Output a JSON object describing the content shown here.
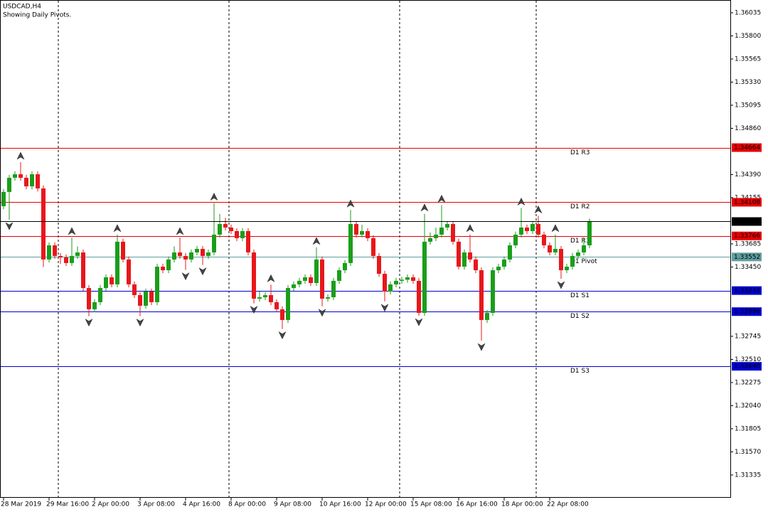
{
  "chart_data": {
    "type": "candlestick",
    "title": "USDCAD,H4",
    "subtitle": "Showing Daily Pivots.",
    "categories": [
      "28 Mar 2019",
      null,
      null,
      null,
      null,
      null,
      null,
      null,
      "29 Mar 16:00",
      null,
      null,
      null,
      null,
      null,
      null,
      null,
      "2 Apr 00:00",
      null,
      null,
      null,
      null,
      null,
      null,
      null,
      "3 Apr 08:00",
      null,
      null,
      null,
      null,
      null,
      null,
      null,
      "4 Apr 16:00",
      null,
      null,
      null,
      null,
      null,
      null,
      null,
      "8 Apr 00:00",
      null,
      null,
      null,
      null,
      null,
      null,
      null,
      "9 Apr 08:00",
      null,
      null,
      null,
      null,
      null,
      null,
      null,
      "10 Apr 16:00",
      null,
      null,
      null,
      null,
      null,
      null,
      null,
      "12 Apr 00:00",
      null,
      null,
      null,
      null,
      null,
      null,
      null,
      "15 Apr 08:00",
      null,
      null,
      null,
      null,
      null,
      null,
      null,
      "16 Apr 16:00",
      null,
      null,
      null,
      null,
      null,
      null,
      null,
      "18 Apr 00:00",
      null,
      null,
      null,
      null,
      null,
      null,
      null,
      "22 Apr 08:00",
      null,
      null,
      null,
      null,
      null,
      null,
      null
    ],
    "open": [
      1.34068,
      1.34213,
      1.34357,
      1.34393,
      1.34357,
      1.3427,
      1.34393,
      1.34249,
      1.33526,
      1.3367,
      1.33562,
      1.33547,
      1.3349,
      1.33562,
      1.33598,
      1.33236,
      1.3302,
      1.33092,
      1.33236,
      1.33345,
      1.33273,
      1.33707,
      1.33526,
      1.33273,
      1.33164,
      1.33056,
      1.332,
      1.33092,
      1.33453,
      1.33417,
      1.33526,
      1.33598,
      1.33562,
      1.33526,
      1.33598,
      1.33634,
      1.33562,
      1.33598,
      1.33779,
      1.33887,
      1.33851,
      1.33815,
      1.33743,
      1.33815,
      1.33598,
      1.33128,
      1.33142,
      1.33164,
      1.33092,
      1.3302,
      1.32911,
      1.33236,
      1.33273,
      1.33309,
      1.33345,
      1.33287,
      1.33526,
      1.33128,
      1.33142,
      1.33309,
      1.33417,
      1.3349,
      1.33887,
      1.33779,
      1.33815,
      1.33743,
      1.33562,
      1.33381,
      1.332,
      1.33273,
      1.33309,
      1.3332,
      1.33345,
      1.33309,
      1.32983,
      1.33707,
      1.33743,
      1.33779,
      1.33851,
      1.33887,
      1.33707,
      1.33453,
      1.33598,
      1.33526,
      1.33417,
      1.32911,
      1.32983,
      1.33417,
      1.33453,
      1.33526,
      1.3367,
      1.33779,
      1.33851,
      1.33815,
      1.33887,
      1.33779,
      1.3367,
      1.33598,
      1.33634,
      1.33417,
      1.33453,
      1.33562,
      1.33598,
      1.3367
    ],
    "high": [
      1.34243,
      1.34387,
      1.34423,
      1.34516,
      1.34387,
      1.34423,
      1.34423,
      1.34279,
      1.337,
      1.337,
      1.33592,
      1.33577,
      1.3375,
      1.3366,
      1.33628,
      1.33266,
      1.33122,
      1.33266,
      1.33375,
      1.33375,
      1.3378,
      1.33737,
      1.33556,
      1.33303,
      1.33194,
      1.3323,
      1.3323,
      1.33483,
      1.33483,
      1.33556,
      1.3366,
      1.3375,
      1.33592,
      1.33628,
      1.33664,
      1.33664,
      1.33628,
      1.341,
      1.3399,
      1.3395,
      1.33881,
      1.33845,
      1.33845,
      1.33845,
      1.33628,
      1.332,
      1.33194,
      1.3327,
      1.33122,
      1.3305,
      1.33266,
      1.33303,
      1.33339,
      1.33375,
      1.33375,
      1.3365,
      1.33556,
      1.33172,
      1.33339,
      1.33447,
      1.3352,
      1.3403,
      1.33917,
      1.3388,
      1.33845,
      1.33773,
      1.33592,
      1.33411,
      1.33303,
      1.33339,
      1.3335,
      1.33375,
      1.33375,
      1.33339,
      1.3399,
      1.338,
      1.3385,
      1.3408,
      1.33917,
      1.33917,
      1.33737,
      1.33628,
      1.3378,
      1.33556,
      1.33447,
      1.33013,
      1.33447,
      1.33483,
      1.33556,
      1.337,
      1.33809,
      1.3405,
      1.33881,
      1.33917,
      1.3397,
      1.33809,
      1.337,
      1.3378,
      1.33664,
      1.33483,
      1.33592,
      1.33628,
      1.3375,
      1.33943
    ],
    "low": [
      1.34038,
      1.3393,
      1.34327,
      1.34327,
      1.3424,
      1.3424,
      1.34219,
      1.3345,
      1.33496,
      1.33532,
      1.3348,
      1.3346,
      1.3346,
      1.33532,
      1.33206,
      1.3295,
      1.3299,
      1.33062,
      1.33206,
      1.33243,
      1.33243,
      1.33496,
      1.33243,
      1.33134,
      1.3295,
      1.33026,
      1.33062,
      1.33062,
      1.33387,
      1.33387,
      1.33496,
      1.33532,
      1.3342,
      1.33496,
      1.33568,
      1.3347,
      1.33532,
      1.33568,
      1.33749,
      1.33821,
      1.33785,
      1.33713,
      1.33713,
      1.33568,
      1.3308,
      1.33098,
      1.33112,
      1.33062,
      1.3299,
      1.3282,
      1.32881,
      1.33206,
      1.33243,
      1.33279,
      1.33257,
      1.33257,
      1.3305,
      1.33098,
      1.33112,
      1.33279,
      1.33387,
      1.3346,
      1.33749,
      1.33749,
      1.33713,
      1.33532,
      1.33351,
      1.331,
      1.3317,
      1.33243,
      1.33279,
      1.3329,
      1.33279,
      1.32953,
      1.32953,
      1.33677,
      1.33713,
      1.33749,
      1.33821,
      1.33677,
      1.33423,
      1.33423,
      1.33496,
      1.33387,
      1.327,
      1.32881,
      1.32953,
      1.33387,
      1.33423,
      1.33496,
      1.3364,
      1.33749,
      1.33785,
      1.33785,
      1.33749,
      1.3364,
      1.33568,
      1.33568,
      1.3333,
      1.33387,
      1.33423,
      1.33532,
      1.33568,
      1.3364
    ],
    "close": [
      1.34213,
      1.34357,
      1.34393,
      1.34357,
      1.3427,
      1.34393,
      1.34249,
      1.33526,
      1.3367,
      1.33562,
      1.33547,
      1.3349,
      1.33562,
      1.33598,
      1.33236,
      1.3302,
      1.33092,
      1.33236,
      1.33345,
      1.33273,
      1.33707,
      1.33526,
      1.33273,
      1.33164,
      1.33056,
      1.332,
      1.33092,
      1.33453,
      1.33417,
      1.33526,
      1.33598,
      1.33562,
      1.33526,
      1.33598,
      1.33634,
      1.33562,
      1.33598,
      1.33779,
      1.33887,
      1.33851,
      1.33815,
      1.33743,
      1.33815,
      1.33598,
      1.33128,
      1.33142,
      1.33164,
      1.33092,
      1.3302,
      1.32911,
      1.33236,
      1.33273,
      1.33309,
      1.33345,
      1.33287,
      1.33526,
      1.33128,
      1.33142,
      1.33309,
      1.33417,
      1.3349,
      1.33887,
      1.33779,
      1.33815,
      1.33743,
      1.33562,
      1.33381,
      1.332,
      1.33273,
      1.33309,
      1.3332,
      1.33345,
      1.33309,
      1.32983,
      1.33707,
      1.33743,
      1.33779,
      1.33851,
      1.33887,
      1.33707,
      1.33453,
      1.33598,
      1.33526,
      1.33417,
      1.32911,
      1.32983,
      1.33417,
      1.33453,
      1.33526,
      1.3367,
      1.33779,
      1.33851,
      1.33815,
      1.33887,
      1.33779,
      1.3367,
      1.33598,
      1.33634,
      1.33417,
      1.33453,
      1.33562,
      1.33598,
      1.3367,
      1.33913
    ],
    "up_color": "#1a9e1a",
    "down_color": "#e8171b",
    "fractals_up": [
      3,
      12,
      20,
      31,
      37,
      47,
      55,
      61,
      74,
      77,
      82,
      91,
      94,
      97
    ],
    "fractals_down": [
      1,
      15,
      24,
      32,
      35,
      44,
      49,
      56,
      67,
      73,
      84,
      98
    ],
    "levels": [
      {
        "name": "D1 R3",
        "value": 1.34664,
        "color": "#e60000"
      },
      {
        "name": "D1 R2",
        "value": 1.34108,
        "color": "#e60000"
      },
      {
        "name": "D1 R1",
        "value": 1.33766,
        "color": "#e60000"
      },
      {
        "name": "D1 Pivot",
        "value": 1.33552,
        "color": "#5f9ea0"
      },
      {
        "name": "D1 S1",
        "value": 1.3321,
        "value_label": "1.33210",
        "color": "#0000cd"
      },
      {
        "name": "D1 S2",
        "value": 1.32996,
        "color": "#0000cd"
      },
      {
        "name": "D1 S3",
        "value": 1.3244,
        "value_label": "1.32440",
        "color": "#0000cd"
      }
    ],
    "ylim": [
      1.31103,
      1.36165
    ],
    "yticks": [
      1.36035,
      {
        "value": 1.358,
        "label": "1.35800"
      },
      1.35565,
      {
        "value": 1.3533,
        "label": "1.35330"
      },
      1.35095,
      {
        "value": 1.3486,
        "label": "1.34860"
      },
      {
        "value": 1.3439,
        "label": "1.34390"
      },
      1.34155,
      1.33685,
      {
        "value": 1.3345,
        "label": "1.33450"
      },
      1.32745,
      {
        "value": 1.3251,
        "label": "1.32510"
      },
      1.32275,
      {
        "value": 1.3204,
        "label": "1.32040"
      },
      1.31805,
      {
        "value": 1.3157,
        "label": "1.31570"
      },
      1.31335
    ]
  }
}
